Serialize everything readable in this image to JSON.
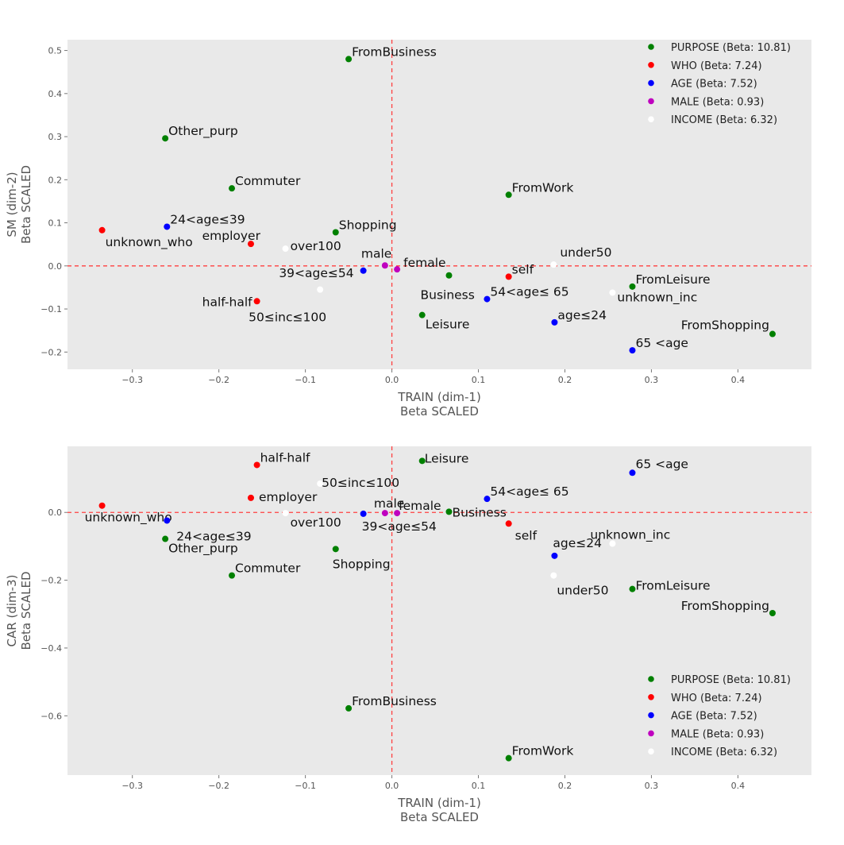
{
  "chart_data": [
    {
      "type": "scatter",
      "panel": "top",
      "xlabel": "TRAIN (dim-1)",
      "xlabel2": "Beta SCALED",
      "ylabel": "SM (dim-2)",
      "ylabel2": "Beta SCALED",
      "xlim": [
        -0.375,
        0.485
      ],
      "ylim": [
        -0.24,
        0.525
      ],
      "xticks": [
        -0.3,
        -0.2,
        -0.1,
        0.0,
        0.1,
        0.2,
        0.3,
        0.4
      ],
      "xtick_labels": [
        "−0.3",
        "−0.2",
        "−0.1",
        "0.0",
        "0.1",
        "0.2",
        "0.3",
        "0.4"
      ],
      "yticks": [
        -0.2,
        -0.1,
        0.0,
        0.1,
        0.2,
        0.3,
        0.4,
        0.5
      ],
      "ytick_labels": [
        "−0.2",
        "−0.1",
        "0.0",
        "0.1",
        "0.2",
        "0.3",
        "0.4",
        "0.5"
      ],
      "grid": false,
      "reference_lines": {
        "x": 0,
        "y": 0,
        "color": "#ff4040",
        "style": "dashed"
      },
      "legend_position": "top-right",
      "legend": [
        {
          "label": "PURPOSE (Beta: 10.81)",
          "color": "#008000"
        },
        {
          "label": "WHO (Beta: 7.24)",
          "color": "#ff0000"
        },
        {
          "label": "AGE (Beta: 7.52)",
          "color": "#0000ff"
        },
        {
          "label": "MALE (Beta: 0.93)",
          "color": "#bf00bf"
        },
        {
          "label": "INCOME (Beta: 6.32)",
          "color": "#ffffff"
        }
      ],
      "points": [
        {
          "label": "FromBusiness",
          "group": "PURPOSE",
          "x": -0.05,
          "y": 0.48,
          "color": "#008000"
        },
        {
          "label": "Other_purp",
          "group": "PURPOSE",
          "x": -0.262,
          "y": 0.296,
          "color": "#008000"
        },
        {
          "label": "Commuter",
          "group": "PURPOSE",
          "x": -0.185,
          "y": 0.18,
          "color": "#008000"
        },
        {
          "label": "FromWork",
          "group": "PURPOSE",
          "x": 0.135,
          "y": 0.165,
          "color": "#008000"
        },
        {
          "label": "Shopping",
          "group": "PURPOSE",
          "x": -0.065,
          "y": 0.078,
          "color": "#008000"
        },
        {
          "label": "Business",
          "group": "PURPOSE",
          "x": 0.066,
          "y": -0.022,
          "color": "#008000"
        },
        {
          "label": "FromLeisure",
          "group": "PURPOSE",
          "x": 0.278,
          "y": -0.048,
          "color": "#008000"
        },
        {
          "label": "Leisure",
          "group": "PURPOSE",
          "x": 0.035,
          "y": -0.114,
          "color": "#008000"
        },
        {
          "label": "FromShopping",
          "group": "PURPOSE",
          "x": 0.44,
          "y": -0.158,
          "color": "#008000"
        },
        {
          "label": "unknown_who",
          "group": "WHO",
          "x": -0.335,
          "y": 0.083,
          "color": "#ff0000"
        },
        {
          "label": "employer",
          "group": "WHO",
          "x": -0.163,
          "y": 0.051,
          "color": "#ff0000"
        },
        {
          "label": "half-half",
          "group": "WHO",
          "x": -0.156,
          "y": -0.082,
          "color": "#ff0000"
        },
        {
          "label": "self",
          "group": "WHO",
          "x": 0.135,
          "y": -0.025,
          "color": "#ff0000"
        },
        {
          "label": "24<age≤39",
          "group": "AGE",
          "x": -0.26,
          "y": 0.091,
          "color": "#0000ff"
        },
        {
          "label": "39<age≤54",
          "group": "AGE",
          "x": -0.033,
          "y": -0.011,
          "color": "#0000ff"
        },
        {
          "label": "54<age≤ 65",
          "group": "AGE",
          "x": 0.11,
          "y": -0.077,
          "color": "#0000ff"
        },
        {
          "label": "age≤24",
          "group": "AGE",
          "x": 0.188,
          "y": -0.131,
          "color": "#0000ff"
        },
        {
          "label": "65 <age",
          "group": "AGE",
          "x": 0.278,
          "y": -0.196,
          "color": "#0000ff"
        },
        {
          "label": "male",
          "group": "MALE",
          "x": -0.008,
          "y": 0.001,
          "color": "#bf00bf"
        },
        {
          "label": "female",
          "group": "MALE",
          "x": 0.006,
          "y": -0.008,
          "color": "#bf00bf"
        },
        {
          "label": "over100",
          "group": "INCOME",
          "x": -0.123,
          "y": 0.04,
          "color": "#ffffff"
        },
        {
          "label": "50≤inc≤100",
          "group": "INCOME",
          "x": -0.083,
          "y": -0.055,
          "color": "#ffffff"
        },
        {
          "label": "under50",
          "group": "INCOME",
          "x": 0.187,
          "y": 0.003,
          "color": "#ffffff"
        },
        {
          "label": "unknown_inc",
          "group": "INCOME",
          "x": 0.255,
          "y": -0.062,
          "color": "#ffffff"
        }
      ]
    },
    {
      "type": "scatter",
      "panel": "bottom",
      "xlabel": "TRAIN (dim-1)",
      "xlabel2": "Beta SCALED",
      "ylabel": "CAR (dim-3)",
      "ylabel2": "Beta SCALED",
      "xlim": [
        -0.375,
        0.485
      ],
      "ylim": [
        -0.775,
        0.195
      ],
      "xticks": [
        -0.3,
        -0.2,
        -0.1,
        0.0,
        0.1,
        0.2,
        0.3,
        0.4
      ],
      "xtick_labels": [
        "−0.3",
        "−0.2",
        "−0.1",
        "0.0",
        "0.1",
        "0.2",
        "0.3",
        "0.4"
      ],
      "yticks": [
        -0.6,
        -0.4,
        -0.2,
        0.0
      ],
      "ytick_labels": [
        "−0.6",
        "−0.4",
        "−0.2",
        "0.0"
      ],
      "grid": false,
      "reference_lines": {
        "x": 0,
        "y": 0,
        "color": "#ff4040",
        "style": "dashed"
      },
      "legend_position": "bottom-right",
      "legend": [
        {
          "label": "PURPOSE (Beta: 10.81)",
          "color": "#008000"
        },
        {
          "label": "WHO (Beta: 7.24)",
          "color": "#ff0000"
        },
        {
          "label": "AGE (Beta: 7.52)",
          "color": "#0000ff"
        },
        {
          "label": "MALE (Beta: 0.93)",
          "color": "#bf00bf"
        },
        {
          "label": "INCOME (Beta: 6.32)",
          "color": "#ffffff"
        }
      ],
      "points": [
        {
          "label": "Leisure",
          "group": "PURPOSE",
          "x": 0.035,
          "y": 0.152,
          "color": "#008000"
        },
        {
          "label": "Business",
          "group": "PURPOSE",
          "x": 0.066,
          "y": 0.002,
          "color": "#008000"
        },
        {
          "label": "Other_purp",
          "group": "PURPOSE",
          "x": -0.262,
          "y": -0.078,
          "color": "#008000"
        },
        {
          "label": "Shopping",
          "group": "PURPOSE",
          "x": -0.065,
          "y": -0.108,
          "color": "#008000"
        },
        {
          "label": "Commuter",
          "group": "PURPOSE",
          "x": -0.185,
          "y": -0.186,
          "color": "#008000"
        },
        {
          "label": "FromLeisure",
          "group": "PURPOSE",
          "x": 0.278,
          "y": -0.226,
          "color": "#008000"
        },
        {
          "label": "FromShopping",
          "group": "PURPOSE",
          "x": 0.44,
          "y": -0.297,
          "color": "#008000"
        },
        {
          "label": "FromBusiness",
          "group": "PURPOSE",
          "x": -0.05,
          "y": -0.578,
          "color": "#008000"
        },
        {
          "label": "FromWork",
          "group": "PURPOSE",
          "x": 0.135,
          "y": -0.725,
          "color": "#008000"
        },
        {
          "label": "half-half",
          "group": "WHO",
          "x": -0.156,
          "y": 0.14,
          "color": "#ff0000"
        },
        {
          "label": "employer",
          "group": "WHO",
          "x": -0.163,
          "y": 0.043,
          "color": "#ff0000"
        },
        {
          "label": "unknown_who",
          "group": "WHO",
          "x": -0.335,
          "y": 0.02,
          "color": "#ff0000"
        },
        {
          "label": "self",
          "group": "WHO",
          "x": 0.135,
          "y": -0.033,
          "color": "#ff0000"
        },
        {
          "label": "65 <age",
          "group": "AGE",
          "x": 0.278,
          "y": 0.117,
          "color": "#0000ff"
        },
        {
          "label": "54<age≤ 65",
          "group": "AGE",
          "x": 0.11,
          "y": 0.04,
          "color": "#0000ff"
        },
        {
          "label": "39<age≤54",
          "group": "AGE",
          "x": -0.033,
          "y": -0.004,
          "color": "#0000ff"
        },
        {
          "label": "24<age≤39",
          "group": "AGE",
          "x": -0.26,
          "y": -0.024,
          "color": "#0000ff"
        },
        {
          "label": "age≤24",
          "group": "AGE",
          "x": 0.188,
          "y": -0.128,
          "color": "#0000ff"
        },
        {
          "label": "male",
          "group": "MALE",
          "x": -0.008,
          "y": -0.002,
          "color": "#bf00bf"
        },
        {
          "label": "female",
          "group": "MALE",
          "x": 0.006,
          "y": -0.002,
          "color": "#bf00bf"
        },
        {
          "label": "50≤inc≤100",
          "group": "INCOME",
          "x": -0.083,
          "y": 0.085,
          "color": "#ffffff"
        },
        {
          "label": "over100",
          "group": "INCOME",
          "x": -0.123,
          "y": -0.002,
          "color": "#ffffff"
        },
        {
          "label": "unknown_inc",
          "group": "INCOME",
          "x": 0.255,
          "y": -0.092,
          "color": "#ffffff"
        },
        {
          "label": "under50",
          "group": "INCOME",
          "x": 0.187,
          "y": -0.186,
          "color": "#ffffff"
        }
      ]
    }
  ]
}
